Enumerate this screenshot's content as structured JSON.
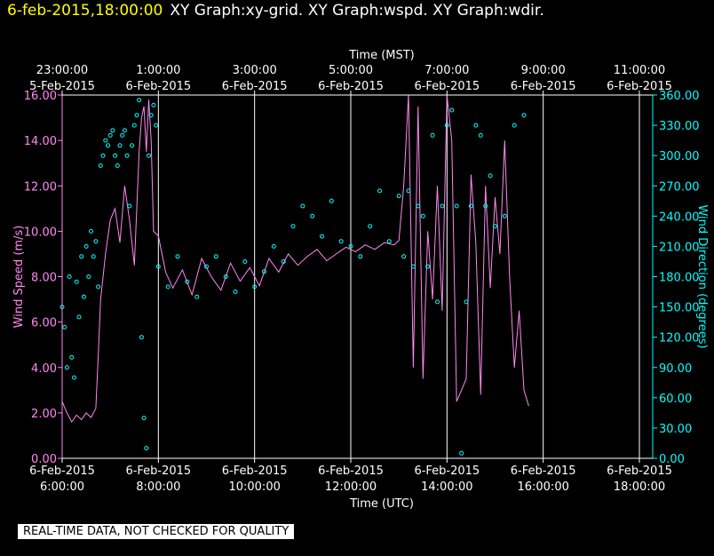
{
  "header": {
    "timestamp": "6-feb-2015,18:00:00",
    "titles": "XY Graph:xy-grid.  XY Graph:wspd.  XY Graph:wdir."
  },
  "disclaimer": "REAL-TIME DATA, NOT CHECKED FOR QUALITY",
  "colors": {
    "wspd": "#ff88ee",
    "wdir": "#00ffff",
    "grid": "#ffffff",
    "background": "#000000"
  },
  "chart_data": {
    "type": "line",
    "top_axis": {
      "label": "Time (MST)",
      "ticks": [
        {
          "time": "23:00:00",
          "date": "5-Feb-2015"
        },
        {
          "time": "1:00:00",
          "date": "6-Feb-2015"
        },
        {
          "time": "3:00:00",
          "date": "6-Feb-2015"
        },
        {
          "time": "5:00:00",
          "date": "6-Feb-2015"
        },
        {
          "time": "7:00:00",
          "date": "6-Feb-2015"
        },
        {
          "time": "9:00:00",
          "date": "6-Feb-2015"
        },
        {
          "time": "11:00:00",
          "date": "6-Feb-2015"
        }
      ]
    },
    "bottom_axis": {
      "label": "Time (UTC)",
      "ticks": [
        {
          "date": "6-Feb-2015",
          "time": "6:00:00"
        },
        {
          "date": "6-Feb-2015",
          "time": "8:00:00"
        },
        {
          "date": "6-Feb-2015",
          "time": "10:00:00"
        },
        {
          "date": "6-Feb-2015",
          "time": "12:00:00"
        },
        {
          "date": "6-Feb-2015",
          "time": "14:00:00"
        },
        {
          "date": "6-Feb-2015",
          "time": "16:00:00"
        },
        {
          "date": "6-Feb-2015",
          "time": "18:00:00"
        }
      ],
      "xlim": [
        6,
        18
      ]
    },
    "left_axis": {
      "label": "Wind Speed (m/s)",
      "ylim": [
        0,
        16
      ],
      "ticks": [
        "0.00",
        "2.00",
        "4.00",
        "6.00",
        "8.00",
        "10.00",
        "12.00",
        "14.00",
        "16.00"
      ]
    },
    "right_axis": {
      "label": "Wind Direction (degrees)",
      "ylim": [
        0,
        360
      ],
      "ticks": [
        "0.00",
        "30.00",
        "60.00",
        "90.00",
        "120.00",
        "150.00",
        "180.00",
        "210.00",
        "240.00",
        "270.00",
        "300.00",
        "330.00",
        "360.00"
      ]
    },
    "grid": true,
    "series": [
      {
        "name": "wspd",
        "style": "line",
        "x": [
          6.0,
          6.1,
          6.2,
          6.3,
          6.4,
          6.5,
          6.6,
          6.7,
          6.75,
          6.8,
          6.9,
          7.0,
          7.1,
          7.2,
          7.3,
          7.4,
          7.5,
          7.6,
          7.65,
          7.7,
          7.75,
          7.8,
          7.85,
          7.9,
          8.0,
          8.15,
          8.3,
          8.5,
          8.7,
          8.9,
          9.1,
          9.3,
          9.5,
          9.7,
          9.9,
          10.1,
          10.3,
          10.5,
          10.7,
          10.9,
          11.1,
          11.3,
          11.5,
          11.7,
          11.9,
          12.1,
          12.3,
          12.5,
          12.7,
          12.9,
          13.0,
          13.1,
          13.2,
          13.3,
          13.4,
          13.5,
          13.6,
          13.7,
          13.8,
          13.9,
          14.0,
          14.1,
          14.2,
          14.3,
          14.4,
          14.5,
          14.6,
          14.7,
          14.8,
          14.9,
          15.0,
          15.1,
          15.2,
          15.3,
          15.4,
          15.5,
          15.6,
          15.7
        ],
        "y": [
          2.5,
          2.0,
          1.6,
          1.9,
          1.7,
          2.0,
          1.8,
          2.2,
          4.5,
          7.0,
          9.0,
          10.5,
          11.0,
          9.5,
          12.0,
          10.5,
          8.5,
          13.5,
          15.0,
          15.5,
          13.5,
          15.8,
          14.0,
          10.0,
          9.8,
          8.2,
          7.5,
          8.3,
          7.2,
          8.8,
          8.0,
          7.4,
          8.6,
          7.8,
          8.4,
          7.6,
          8.8,
          8.2,
          9.0,
          8.5,
          8.9,
          9.2,
          8.7,
          9.0,
          9.3,
          9.1,
          9.4,
          9.2,
          9.5,
          9.4,
          9.6,
          12.0,
          16.0,
          4.0,
          15.5,
          3.5,
          10.0,
          7.0,
          12.0,
          6.5,
          16.0,
          14.0,
          2.5,
          3.0,
          3.5,
          12.5,
          9.5,
          2.8,
          12.0,
          7.5,
          11.5,
          9.0,
          14.0,
          8.0,
          4.0,
          6.5,
          3.0,
          2.3
        ]
      },
      {
        "name": "wdir",
        "style": "points",
        "x": [
          6.0,
          6.05,
          6.1,
          6.15,
          6.2,
          6.25,
          6.3,
          6.35,
          6.4,
          6.45,
          6.5,
          6.55,
          6.6,
          6.65,
          6.7,
          6.75,
          6.8,
          6.85,
          6.9,
          6.95,
          7.0,
          7.05,
          7.1,
          7.15,
          7.2,
          7.25,
          7.3,
          7.35,
          7.4,
          7.45,
          7.5,
          7.55,
          7.6,
          7.65,
          7.7,
          7.75,
          7.8,
          7.85,
          7.9,
          7.95,
          8.0,
          8.2,
          8.4,
          8.6,
          8.8,
          9.0,
          9.2,
          9.4,
          9.6,
          9.8,
          10.0,
          10.2,
          10.4,
          10.6,
          10.8,
          11.0,
          11.2,
          11.4,
          11.6,
          11.8,
          12.0,
          12.2,
          12.4,
          12.6,
          12.8,
          13.0,
          13.1,
          13.2,
          13.3,
          13.4,
          13.5,
          13.6,
          13.7,
          13.8,
          13.9,
          14.0,
          14.1,
          14.2,
          14.3,
          14.4,
          14.5,
          14.6,
          14.7,
          14.8,
          14.9,
          15.0,
          15.2,
          15.4,
          15.6
        ],
        "y": [
          150,
          130,
          90,
          180,
          100,
          80,
          175,
          140,
          200,
          160,
          210,
          180,
          225,
          200,
          215,
          170,
          290,
          300,
          315,
          310,
          320,
          325,
          300,
          290,
          310,
          320,
          325,
          300,
          250,
          310,
          330,
          340,
          355,
          120,
          40,
          10,
          300,
          340,
          350,
          330,
          190,
          170,
          200,
          175,
          160,
          190,
          200,
          180,
          165,
          195,
          170,
          185,
          210,
          195,
          230,
          250,
          240,
          220,
          255,
          215,
          210,
          200,
          230,
          265,
          215,
          260,
          200,
          265,
          190,
          250,
          240,
          190,
          320,
          155,
          250,
          330,
          345,
          250,
          5,
          155,
          250,
          330,
          320,
          250,
          280,
          230,
          240,
          330,
          340
        ]
      }
    ]
  }
}
